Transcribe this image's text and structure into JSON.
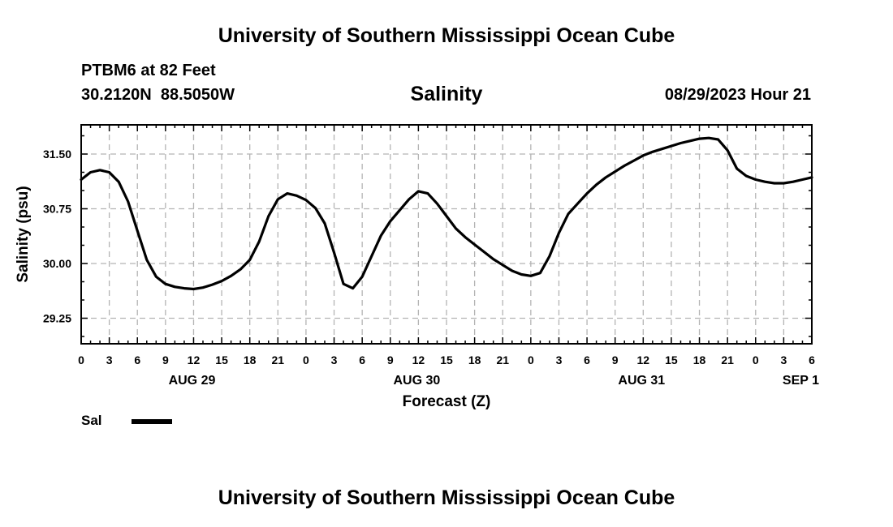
{
  "header": {
    "title": "University of Southern Mississippi Ocean Cube"
  },
  "footer": {
    "title": "University of Southern Mississippi Ocean Cube"
  },
  "station": {
    "name": "PTBM6 at 82 Feet",
    "coords": "30.2120N  88.5050W"
  },
  "timestamp": "08/29/2023 Hour 21",
  "legend": {
    "label": "Sal",
    "color": "#000000"
  },
  "chart_data": {
    "type": "line",
    "title": "Salinity",
    "xlabel": "Forecast (Z)",
    "ylabel": "Salinity (psu)",
    "xlim": [
      0,
      78
    ],
    "ylim": [
      28.9,
      31.9
    ],
    "yticks": [
      29.25,
      30.0,
      30.75,
      31.5
    ],
    "ytick_labels": [
      "29.25",
      "30.00",
      "30.75",
      "31.50"
    ],
    "xtick_hours": [
      0,
      3,
      6,
      9,
      12,
      15,
      18,
      21,
      24,
      27,
      30,
      33,
      36,
      39,
      42,
      45,
      48,
      51,
      54,
      57,
      60,
      63,
      66,
      69,
      72,
      75,
      78
    ],
    "xtick_labels": [
      "0",
      "3",
      "6",
      "9",
      "12",
      "15",
      "18",
      "21",
      "0",
      "3",
      "6",
      "9",
      "12",
      "15",
      "18",
      "21",
      "0",
      "3",
      "6",
      "9",
      "12",
      "15",
      "18",
      "21",
      "0",
      "3",
      "6"
    ],
    "date_labels": [
      {
        "hour": 12,
        "label": "AUG 29"
      },
      {
        "hour": 36,
        "label": "AUG 30"
      },
      {
        "hour": 60,
        "label": "AUG 31"
      },
      {
        "hour": 77,
        "label": "SEP 1"
      }
    ],
    "grid": true,
    "series": [
      {
        "name": "Sal",
        "x": [
          0,
          1,
          2,
          3,
          4,
          5,
          6,
          7,
          8,
          9,
          10,
          11,
          12,
          13,
          14,
          15,
          16,
          17,
          18,
          19,
          20,
          21,
          22,
          23,
          24,
          25,
          26,
          27,
          28,
          29,
          30,
          31,
          32,
          33,
          34,
          35,
          36,
          37,
          38,
          39,
          40,
          41,
          42,
          43,
          44,
          45,
          46,
          47,
          48,
          49,
          50,
          51,
          52,
          53,
          54,
          55,
          56,
          57,
          58,
          59,
          60,
          61,
          62,
          63,
          64,
          65,
          66,
          67,
          68,
          69,
          70,
          71,
          72,
          73,
          74,
          75,
          76,
          77,
          78
        ],
        "values": [
          31.15,
          31.25,
          31.28,
          31.25,
          31.12,
          30.85,
          30.45,
          30.05,
          29.82,
          29.72,
          29.68,
          29.66,
          29.65,
          29.67,
          29.71,
          29.76,
          29.83,
          29.92,
          30.05,
          30.3,
          30.65,
          30.88,
          30.96,
          30.93,
          30.87,
          30.76,
          30.55,
          30.15,
          29.72,
          29.66,
          29.82,
          30.1,
          30.38,
          30.58,
          30.73,
          30.88,
          30.99,
          30.96,
          30.82,
          30.65,
          30.48,
          30.36,
          30.26,
          30.16,
          30.06,
          29.98,
          29.9,
          29.85,
          29.83,
          29.87,
          30.1,
          30.42,
          30.68,
          30.82,
          30.96,
          31.08,
          31.18,
          31.26,
          31.34,
          31.41,
          31.48,
          31.53,
          31.57,
          31.61,
          31.65,
          31.68,
          31.71,
          31.72,
          31.7,
          31.55,
          31.3,
          31.2,
          31.15,
          31.12,
          31.1,
          31.1,
          31.12,
          31.15,
          31.18
        ]
      }
    ]
  }
}
